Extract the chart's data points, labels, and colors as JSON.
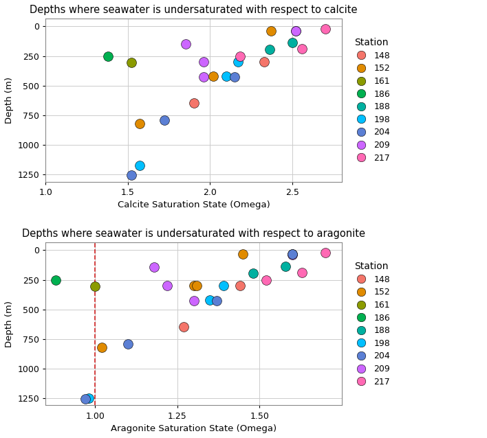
{
  "title_calcite": "Depths where seawater is undersaturated with respect to calcite",
  "title_aragonite": "Depths where seawater is undersaturated with respect to aragonite",
  "xlabel_calcite": "Calcite Saturation State (Omega)",
  "xlabel_aragonite": "Aragonite Saturation State (Omega)",
  "ylabel": "Depth (m)",
  "stations": [
    148,
    152,
    161,
    186,
    188,
    198,
    204,
    209,
    217
  ],
  "colors": {
    "148": "#F4756A",
    "152": "#E08B00",
    "161": "#8B9B00",
    "186": "#00B050",
    "188": "#00B0A0",
    "198": "#00BFFF",
    "204": "#5B7FD4",
    "209": "#CC66FF",
    "217": "#FF69B4"
  },
  "calcite_data": [
    {
      "station": 186,
      "omega": 1.38,
      "depth": 255
    },
    {
      "station": 161,
      "omega": 1.52,
      "depth": 305
    },
    {
      "station": 204,
      "omega": 1.52,
      "depth": 1255
    },
    {
      "station": 198,
      "omega": 1.57,
      "depth": 1175
    },
    {
      "station": 152,
      "omega": 1.57,
      "depth": 820
    },
    {
      "station": 204,
      "omega": 1.72,
      "depth": 790
    },
    {
      "station": 209,
      "omega": 1.85,
      "depth": 145
    },
    {
      "station": 148,
      "omega": 1.9,
      "depth": 645
    },
    {
      "station": 209,
      "omega": 1.96,
      "depth": 300
    },
    {
      "station": 152,
      "omega": 2.02,
      "depth": 420
    },
    {
      "station": 209,
      "omega": 1.96,
      "depth": 425
    },
    {
      "station": 198,
      "omega": 2.1,
      "depth": 420
    },
    {
      "station": 204,
      "omega": 2.15,
      "depth": 425
    },
    {
      "station": 198,
      "omega": 2.17,
      "depth": 300
    },
    {
      "station": 217,
      "omega": 2.18,
      "depth": 255
    },
    {
      "station": 148,
      "omega": 2.33,
      "depth": 300
    },
    {
      "station": 188,
      "omega": 2.36,
      "depth": 195
    },
    {
      "station": 152,
      "omega": 2.37,
      "depth": 35
    },
    {
      "station": 188,
      "omega": 2.5,
      "depth": 135
    },
    {
      "station": 204,
      "omega": 2.52,
      "depth": 35
    },
    {
      "station": 209,
      "omega": 2.52,
      "depth": 40
    },
    {
      "station": 217,
      "omega": 2.56,
      "depth": 190
    },
    {
      "station": 217,
      "omega": 2.7,
      "depth": 20
    }
  ],
  "aragonite_data": [
    {
      "station": 186,
      "omega": 0.88,
      "depth": 255
    },
    {
      "station": 198,
      "omega": 0.98,
      "depth": 1250
    },
    {
      "station": 204,
      "omega": 0.97,
      "depth": 1255
    },
    {
      "station": 161,
      "omega": 1.0,
      "depth": 305
    },
    {
      "station": 152,
      "omega": 1.02,
      "depth": 820
    },
    {
      "station": 204,
      "omega": 1.1,
      "depth": 790
    },
    {
      "station": 209,
      "omega": 1.18,
      "depth": 145
    },
    {
      "station": 209,
      "omega": 1.22,
      "depth": 300
    },
    {
      "station": 148,
      "omega": 1.27,
      "depth": 645
    },
    {
      "station": 152,
      "omega": 1.3,
      "depth": 300
    },
    {
      "station": 209,
      "omega": 1.3,
      "depth": 425
    },
    {
      "station": 152,
      "omega": 1.31,
      "depth": 300
    },
    {
      "station": 198,
      "omega": 1.35,
      "depth": 420
    },
    {
      "station": 204,
      "omega": 1.37,
      "depth": 425
    },
    {
      "station": 198,
      "omega": 1.39,
      "depth": 300
    },
    {
      "station": 148,
      "omega": 1.44,
      "depth": 300
    },
    {
      "station": 152,
      "omega": 1.45,
      "depth": 35
    },
    {
      "station": 188,
      "omega": 1.48,
      "depth": 195
    },
    {
      "station": 217,
      "omega": 1.52,
      "depth": 255
    },
    {
      "station": 188,
      "omega": 1.58,
      "depth": 135
    },
    {
      "station": 152,
      "omega": 1.6,
      "depth": 35
    },
    {
      "station": 209,
      "omega": 1.6,
      "depth": 40
    },
    {
      "station": 204,
      "omega": 1.6,
      "depth": 35
    },
    {
      "station": 217,
      "omega": 1.63,
      "depth": 190
    },
    {
      "station": 217,
      "omega": 1.7,
      "depth": 20
    }
  ],
  "calcite_xlim": [
    1.0,
    2.8
  ],
  "calcite_xticks": [
    1.0,
    1.5,
    2.0,
    2.5
  ],
  "aragonite_xlim": [
    0.85,
    1.75
  ],
  "aragonite_xticks": [
    1.0,
    1.25,
    1.5
  ],
  "ylim": [
    1310,
    -65
  ],
  "yticks": [
    0,
    250,
    500,
    750,
    1000,
    1250
  ],
  "marker_size": 100,
  "dashed_line_color": "#CC0000",
  "grid_color": "#CCCCCC",
  "background_color": "#FFFFFF"
}
